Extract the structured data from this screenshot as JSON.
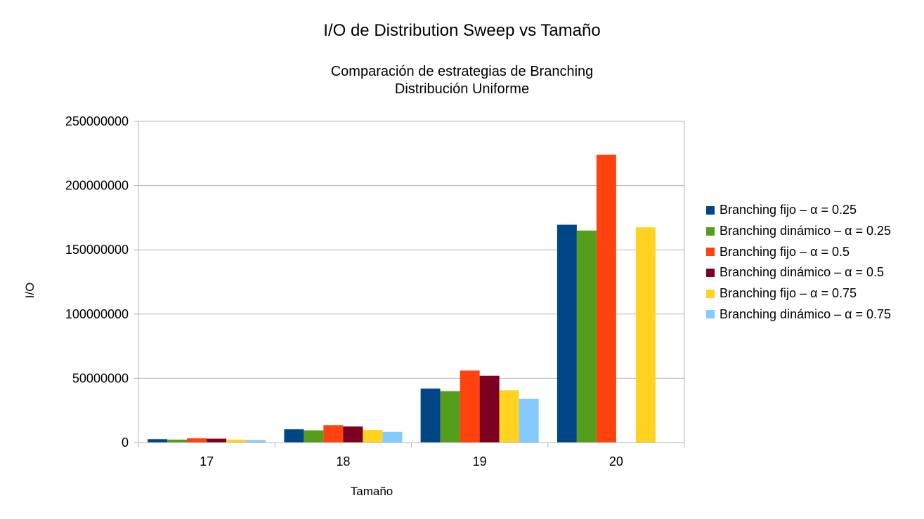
{
  "chart_data": {
    "type": "bar",
    "title": "I/O de Distribution Sweep vs Tamaño",
    "subtitle": [
      "Comparación de estrategias de Branching",
      "Distribución Uniforme"
    ],
    "xlabel": "Tamaño",
    "ylabel": "I/O",
    "categories": [
      "17",
      "18",
      "19",
      "20"
    ],
    "ylim": [
      0,
      250000000
    ],
    "yticks": [
      0,
      50000000,
      100000000,
      150000000,
      200000000,
      250000000
    ],
    "grid": true,
    "legend_position": "right",
    "series": [
      {
        "name": "Branching fijo – α = 0.25",
        "color": "#004586",
        "values": [
          2600000,
          10300000,
          42000000,
          169500000
        ]
      },
      {
        "name": "Branching dinámico – α = 0.25",
        "color": "#579d1c",
        "values": [
          2300000,
          9500000,
          40000000,
          165000000
        ]
      },
      {
        "name": "Branching fijo – α = 0.5",
        "color": "#ff420e",
        "values": [
          3300000,
          13500000,
          56000000,
          224000000
        ]
      },
      {
        "name": "Branching dinámico – α = 0.5",
        "color": "#7e0021",
        "values": [
          3000000,
          12500000,
          52000000,
          null
        ]
      },
      {
        "name": "Branching fijo – α = 0.75",
        "color": "#ffd320",
        "values": [
          2300000,
          9800000,
          40700000,
          167500000
        ]
      },
      {
        "name": "Branching dinámico – α = 0.75",
        "color": "#83caff",
        "values": [
          2000000,
          8300000,
          34000000,
          null
        ]
      }
    ]
  }
}
